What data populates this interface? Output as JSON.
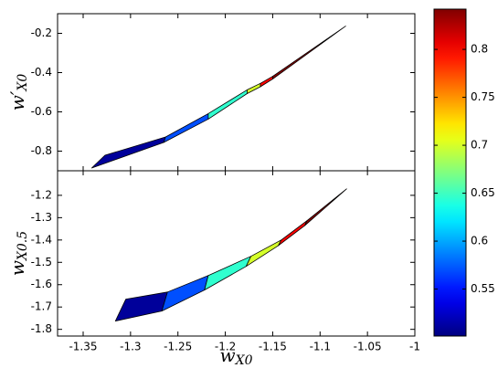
{
  "chart_data": {
    "type": "contour",
    "colormap": "jet",
    "xlim": [
      -1.377,
      -1.0
    ],
    "xticks": [
      -1.35,
      -1.3,
      -1.25,
      -1.2,
      -1.15,
      -1.1,
      -1.05,
      -1
    ],
    "xlabel": {
      "main": "w",
      "sub": "X0"
    },
    "panels": [
      {
        "ylabel": {
          "main": "w′",
          "sub": "X0"
        },
        "ylim": [
          -0.9,
          -0.1
        ],
        "yticks": [
          -0.8,
          -0.6,
          -0.4,
          -0.2
        ],
        "bands": [
          {
            "level": 0.51,
            "x": [
              -1.341,
              -1.327,
              -1.263,
              -1.265
            ],
            "y": [
              -0.886,
              -0.821,
              -0.728,
              -0.756
            ]
          },
          {
            "level": 0.57,
            "x": [
              -1.263,
              -1.218,
              -1.218,
              -1.265
            ],
            "y": [
              -0.728,
              -0.609,
              -0.637,
              -0.756
            ]
          },
          {
            "level": 0.645,
            "x": [
              -1.218,
              -1.177,
              -1.177,
              -1.218
            ],
            "y": [
              -0.609,
              -0.488,
              -0.507,
              -0.637
            ]
          },
          {
            "level": 0.7,
            "x": [
              -1.177,
              -1.163,
              -1.163,
              -1.177
            ],
            "y": [
              -0.488,
              -0.455,
              -0.472,
              -0.507
            ]
          },
          {
            "level": 0.8,
            "x": [
              -1.163,
              -1.15,
              -1.15,
              -1.163
            ],
            "y": [
              -0.455,
              -0.419,
              -0.433,
              -0.472
            ]
          },
          {
            "level": 0.84,
            "x": [
              -1.15,
              -1.073,
              -1.15
            ],
            "y": [
              -0.419,
              -0.163,
              -0.433
            ]
          }
        ]
      },
      {
        "ylabel": {
          "main": "w",
          "sub": "X0.5"
        },
        "ylim": [
          -1.83,
          -1.09
        ],
        "yticks": [
          -1.8,
          -1.7,
          -1.6,
          -1.5,
          -1.4,
          -1.3,
          -1.2
        ],
        "bands": [
          {
            "level": 0.51,
            "x": [
              -1.316,
              -1.305,
              -1.261,
              -1.267
            ],
            "y": [
              -1.763,
              -1.665,
              -1.633,
              -1.718
            ]
          },
          {
            "level": 0.57,
            "x": [
              -1.261,
              -1.218,
              -1.222,
              -1.267
            ],
            "y": [
              -1.633,
              -1.559,
              -1.624,
              -1.718
            ]
          },
          {
            "level": 0.645,
            "x": [
              -1.218,
              -1.173,
              -1.178,
              -1.222
            ],
            "y": [
              -1.559,
              -1.473,
              -1.518,
              -1.624
            ]
          },
          {
            "level": 0.7,
            "x": [
              -1.173,
              -1.141,
              -1.144,
              -1.178
            ],
            "y": [
              -1.473,
              -1.4,
              -1.425,
              -1.518
            ]
          },
          {
            "level": 0.8,
            "x": [
              -1.141,
              -1.114,
              -1.116,
              -1.144
            ],
            "y": [
              -1.4,
              -1.314,
              -1.335,
              -1.425
            ]
          },
          {
            "level": 0.84,
            "x": [
              -1.114,
              -1.072,
              -1.116
            ],
            "y": [
              -1.314,
              -1.171,
              -1.335
            ]
          }
        ]
      }
    ],
    "colorbar": {
      "lim": [
        0.501,
        0.842
      ],
      "ticks": [
        0.55,
        0.6,
        0.65,
        0.7,
        0.75,
        0.8
      ]
    }
  }
}
